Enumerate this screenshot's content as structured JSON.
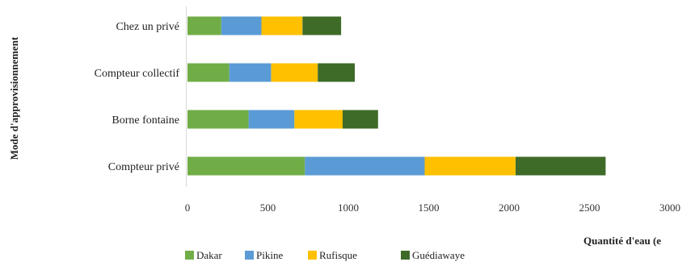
{
  "chart_data": {
    "type": "bar",
    "orientation": "horizontal",
    "stacked": true,
    "categories": [
      "Compteur privé",
      "Borne fontaine",
      "Compteur collectif",
      "Chez un privé"
    ],
    "series": [
      {
        "name": "Dakar",
        "color": "#70ad47",
        "values": [
          730,
          380,
          260,
          210
        ]
      },
      {
        "name": "Pikine",
        "color": "#5b9bd5",
        "values": [
          745,
          285,
          260,
          250
        ]
      },
      {
        "name": "Rufisque",
        "color": "#ffc000",
        "values": [
          565,
          300,
          290,
          255
        ]
      },
      {
        "name": "Guédiawaye",
        "color": "#3e6b28",
        "values": [
          560,
          220,
          230,
          240
        ]
      }
    ],
    "xlim": [
      0,
      3000
    ],
    "xticks": [
      0,
      500,
      1000,
      1500,
      2000,
      2500,
      3000
    ],
    "xlabel": "Quantité d'eau (e",
    "ylabel": "Mode d'approvisionnement",
    "grid": false,
    "legend": "bottom"
  }
}
